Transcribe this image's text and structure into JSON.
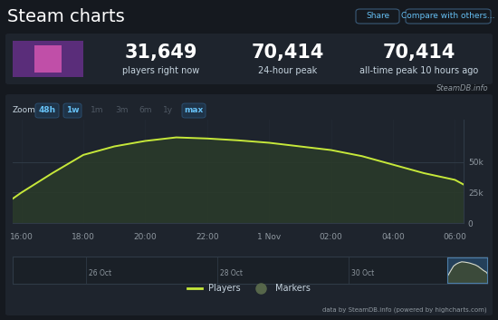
{
  "header": {
    "title": "Steam charts",
    "buttons": [
      "Share",
      "Compare with others..."
    ]
  },
  "stats": [
    {
      "value": "31,649",
      "label": "players right now"
    },
    {
      "value": "70,414",
      "label": "24-hour peak"
    },
    {
      "value": "70,414",
      "label": "all-time peak 10 hours ago"
    }
  ],
  "source_tag": "SteamDB.info",
  "zoom": {
    "label": "Zoom",
    "buttons": [
      "48h",
      "1w",
      "1m",
      "3m",
      "6m",
      "1y",
      "max"
    ],
    "active": [
      "48h",
      "1w",
      "max"
    ]
  },
  "chart_data": {
    "type": "area",
    "x": [
      15.72,
      16,
      17,
      18,
      19,
      20,
      21,
      22,
      23,
      24,
      25,
      26,
      27,
      28,
      29,
      30,
      30.28
    ],
    "series": [
      {
        "name": "Players",
        "color": "#c6e83a",
        "line_style": "solid",
        "values": [
          20000,
          25000,
          41000,
          56000,
          63000,
          67500,
          70414,
          69500,
          68000,
          66000,
          63000,
          60000,
          55000,
          48000,
          41000,
          35500,
          31649
        ]
      },
      {
        "name": "Markers",
        "color": "#56664a",
        "marker": "circle",
        "values": [
          null,
          null,
          null,
          null,
          null,
          null,
          null,
          null,
          null,
          null,
          null,
          null,
          null,
          null,
          null,
          null,
          null
        ]
      }
    ],
    "xlim": [
      15.72,
      30.28
    ],
    "xticks": [
      {
        "value": 16,
        "label": "16:00"
      },
      {
        "value": 18,
        "label": "18:00"
      },
      {
        "value": 20,
        "label": "20:00"
      },
      {
        "value": 22,
        "label": "22:00"
      },
      {
        "value": 24,
        "label": "1 Nov"
      },
      {
        "value": 26,
        "label": "02:00"
      },
      {
        "value": 28,
        "label": "04:00"
      },
      {
        "value": 30,
        "label": "06:00"
      }
    ],
    "ylim": [
      0,
      85000
    ],
    "yticks": [
      0,
      {
        "value": 25000,
        "label": "25k"
      },
      {
        "value": 50000,
        "label": "50k"
      }
    ],
    "grid": true,
    "legend": "lower center"
  },
  "navigator": {
    "labels": [
      "26 Oct",
      "28 Oct",
      "30 Oct"
    ]
  },
  "credit": "data by SteamDB.info (powered by highcharts.com)"
}
